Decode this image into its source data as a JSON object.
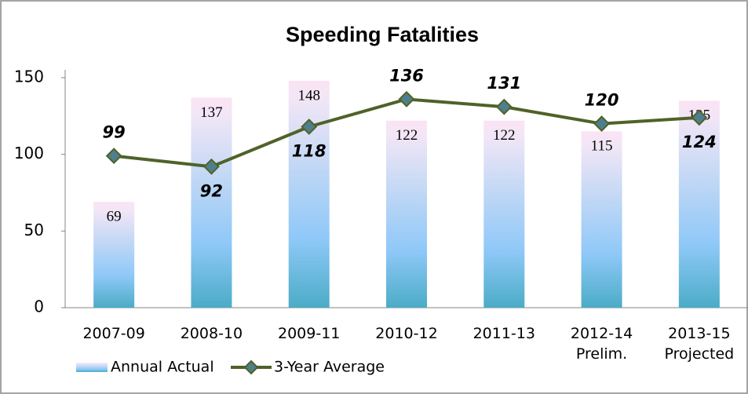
{
  "chart_data": {
    "type": "bar",
    "title": "Speeding Fatalities",
    "categories": [
      "2007-09",
      "2008-10",
      "2009-11",
      "2010-12",
      "2011-13",
      "2012-14\nPrelim.",
      "2013-15\nProjected"
    ],
    "series": [
      {
        "name": "Annual Actual",
        "type": "bar",
        "color": "#4bacc6",
        "values": [
          69,
          137,
          148,
          122,
          122,
          115,
          135
        ]
      },
      {
        "name": "3-Year Average",
        "type": "line",
        "color": "#4f6228",
        "values": [
          99,
          92,
          118,
          136,
          131,
          120,
          124
        ]
      }
    ],
    "ylim": [
      0,
      150
    ],
    "yticks": [
      0,
      50,
      100,
      150
    ],
    "grid": false,
    "legend": "bottom-left"
  }
}
